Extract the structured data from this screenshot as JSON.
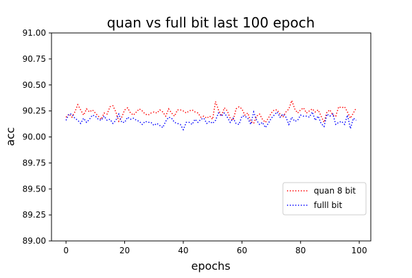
{
  "chart_data": {
    "type": "line",
    "title": "quan vs full bit last 100 epoch",
    "xlabel": "epochs",
    "ylabel": "acc",
    "xlim": [
      -4.95,
      103.95
    ],
    "ylim": [
      89.0,
      91.0
    ],
    "x_ticks": [
      0,
      20,
      40,
      60,
      80,
      100
    ],
    "y_ticks": [
      89.0,
      89.25,
      89.5,
      89.75,
      90.0,
      90.25,
      90.5,
      90.75,
      91.0
    ],
    "y_tick_labels": [
      "89.00",
      "89.25",
      "89.50",
      "89.75",
      "90.00",
      "90.25",
      "90.50",
      "90.75",
      "91.00"
    ],
    "grid": false,
    "legend_position": "lower-right",
    "line_style": "dotted",
    "series": [
      {
        "name": "quan 8 bit",
        "color": "#ff0000",
        "values": [
          90.19,
          90.22,
          90.19,
          90.24,
          90.31,
          90.26,
          90.21,
          90.27,
          90.24,
          90.26,
          90.23,
          90.2,
          90.17,
          90.23,
          90.22,
          90.29,
          90.3,
          90.24,
          90.15,
          90.19,
          90.26,
          90.28,
          90.23,
          90.21,
          90.24,
          90.27,
          90.25,
          90.22,
          90.21,
          90.23,
          90.24,
          90.23,
          90.26,
          90.24,
          90.2,
          90.27,
          90.23,
          90.2,
          90.26,
          90.26,
          90.25,
          90.23,
          90.25,
          90.26,
          90.24,
          90.23,
          90.19,
          90.2,
          90.18,
          90.2,
          90.17,
          90.34,
          90.26,
          90.2,
          90.28,
          90.25,
          90.18,
          90.16,
          90.27,
          90.29,
          90.27,
          90.21,
          90.23,
          90.15,
          90.13,
          90.2,
          90.22,
          90.17,
          90.14,
          90.18,
          90.23,
          90.26,
          90.26,
          90.22,
          90.19,
          90.24,
          90.27,
          90.35,
          90.27,
          90.23,
          90.26,
          90.28,
          90.23,
          90.25,
          90.27,
          90.24,
          90.26,
          90.2,
          90.14,
          90.24,
          90.26,
          90.21,
          90.2,
          90.29,
          90.28,
          90.29,
          90.24,
          90.18,
          90.23,
          90.28
        ]
      },
      {
        "name": "fulll bit",
        "color": "#0000ff",
        "values": [
          90.16,
          90.22,
          90.22,
          90.18,
          90.16,
          90.13,
          90.18,
          90.14,
          90.17,
          90.21,
          90.2,
          90.17,
          90.16,
          90.2,
          90.16,
          90.17,
          90.13,
          90.16,
          90.22,
          90.14,
          90.14,
          90.19,
          90.17,
          90.18,
          90.16,
          90.15,
          90.12,
          90.15,
          90.14,
          90.14,
          90.11,
          90.13,
          90.11,
          90.09,
          90.15,
          90.19,
          90.18,
          90.14,
          90.13,
          90.12,
          90.07,
          90.14,
          90.14,
          90.12,
          90.17,
          90.14,
          90.17,
          90.18,
          90.13,
          90.15,
          90.13,
          90.16,
          90.23,
          90.2,
          90.23,
          90.19,
          90.14,
          90.18,
          90.13,
          90.12,
          90.2,
          90.2,
          90.18,
          90.12,
          90.24,
          90.16,
          90.12,
          90.14,
          90.09,
          90.13,
          90.18,
          90.21,
          90.24,
          90.19,
          90.22,
          90.19,
          90.12,
          90.19,
          90.15,
          90.16,
          90.21,
          90.2,
          90.2,
          90.19,
          90.24,
          90.16,
          90.2,
          90.13,
          90.1,
          90.22,
          90.2,
          90.22,
          90.12,
          90.14,
          90.15,
          90.12,
          90.21,
          90.08,
          90.18,
          90.16
        ]
      }
    ]
  }
}
